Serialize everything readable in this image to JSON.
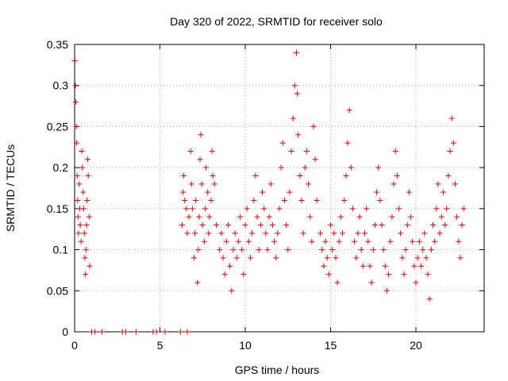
{
  "chart_data": {
    "type": "scatter",
    "title": "Day 320 of 2022, SRMTID for receiver solo",
    "xlabel": "GPS time / hours",
    "ylabel": "SRMTID / TECUs",
    "xlim": [
      0,
      24
    ],
    "ylim": [
      0,
      0.35
    ],
    "x_ticks": [
      0,
      5,
      10,
      15,
      20
    ],
    "x_tick_labels": [
      "0",
      "5",
      "10",
      "15",
      "20"
    ],
    "y_ticks": [
      0,
      0.05,
      0.1,
      0.15,
      0.2,
      0.25,
      0.3,
      0.35
    ],
    "y_tick_labels": [
      "0",
      "0.05",
      "0.1",
      "0.15",
      "0.2",
      "0.25",
      "0.3",
      "0.35"
    ],
    "grid": true,
    "marker": "+",
    "color": "#e00000",
    "series": [
      {
        "name": "SRMTID",
        "points": [
          [
            0.02,
            0.33
          ],
          [
            0.05,
            0.3
          ],
          [
            0.07,
            0.28
          ],
          [
            0.1,
            0.25
          ],
          [
            0.12,
            0.23
          ],
          [
            0.15,
            0.19
          ],
          [
            0.18,
            0.16
          ],
          [
            0.2,
            0.14
          ],
          [
            0.23,
            0.12
          ],
          [
            0.27,
            0.18
          ],
          [
            0.3,
            0.15
          ],
          [
            0.33,
            0.13
          ],
          [
            0.38,
            0.11
          ],
          [
            0.42,
            0.22
          ],
          [
            0.45,
            0.2
          ],
          [
            0.5,
            0.17
          ],
          [
            0.53,
            0.15
          ],
          [
            0.57,
            0.12
          ],
          [
            0.6,
            0.09
          ],
          [
            0.63,
            0.07
          ],
          [
            0.67,
            0.1
          ],
          [
            0.7,
            0.13
          ],
          [
            0.73,
            0.16
          ],
          [
            0.77,
            0.21
          ],
          [
            0.8,
            0.19
          ],
          [
            0.85,
            0.14
          ],
          [
            0.88,
            0.08
          ],
          [
            1.0,
            0.0
          ],
          [
            1.2,
            0.0
          ],
          [
            1.6,
            0.0
          ],
          [
            2.8,
            0.0
          ],
          [
            3.0,
            0.0
          ],
          [
            3.6,
            0.0
          ],
          [
            4.6,
            0.0
          ],
          [
            4.8,
            0.0
          ],
          [
            5.3,
            0.0
          ],
          [
            6.2,
            0.0
          ],
          [
            6.6,
            0.0
          ],
          [
            6.3,
            0.13
          ],
          [
            6.35,
            0.17
          ],
          [
            6.4,
            0.19
          ],
          [
            6.45,
            0.16
          ],
          [
            6.55,
            0.15
          ],
          [
            6.6,
            0.12
          ],
          [
            6.7,
            0.14
          ],
          [
            6.8,
            0.22
          ],
          [
            6.85,
            0.18
          ],
          [
            6.9,
            0.15
          ],
          [
            7.0,
            0.09
          ],
          [
            7.05,
            0.12
          ],
          [
            7.1,
            0.16
          ],
          [
            7.2,
            0.06
          ],
          [
            7.25,
            0.1
          ],
          [
            7.3,
            0.14
          ],
          [
            7.35,
            0.21
          ],
          [
            7.4,
            0.24
          ],
          [
            7.45,
            0.18
          ],
          [
            7.5,
            0.13
          ],
          [
            7.6,
            0.11
          ],
          [
            7.65,
            0.15
          ],
          [
            7.7,
            0.2
          ],
          [
            7.8,
            0.17
          ],
          [
            7.85,
            0.12
          ],
          [
            7.9,
            0.14
          ],
          [
            8.0,
            0.16
          ],
          [
            8.05,
            0.22
          ],
          [
            8.1,
            0.19
          ],
          [
            8.2,
            0.18
          ],
          [
            8.3,
            0.13
          ],
          [
            8.5,
            0.1
          ],
          [
            8.6,
            0.12
          ],
          [
            8.7,
            0.09
          ],
          [
            8.8,
            0.07
          ],
          [
            8.9,
            0.11
          ],
          [
            9.0,
            0.13
          ],
          [
            9.1,
            0.08
          ],
          [
            9.2,
            0.05
          ],
          [
            9.3,
            0.1
          ],
          [
            9.4,
            0.12
          ],
          [
            9.5,
            0.09
          ],
          [
            9.6,
            0.11
          ],
          [
            9.7,
            0.14
          ],
          [
            9.8,
            0.1
          ],
          [
            9.9,
            0.07
          ],
          [
            10.0,
            0.13
          ],
          [
            10.1,
            0.15
          ],
          [
            10.2,
            0.11
          ],
          [
            10.3,
            0.09
          ],
          [
            10.4,
            0.12
          ],
          [
            10.5,
            0.16
          ],
          [
            10.6,
            0.19
          ],
          [
            10.7,
            0.14
          ],
          [
            10.8,
            0.1
          ],
          [
            10.9,
            0.13
          ],
          [
            11.0,
            0.17
          ],
          [
            11.1,
            0.15
          ],
          [
            11.2,
            0.12
          ],
          [
            11.3,
            0.1
          ],
          [
            11.4,
            0.14
          ],
          [
            11.5,
            0.18
          ],
          [
            11.6,
            0.13
          ],
          [
            11.7,
            0.11
          ],
          [
            11.8,
            0.09
          ],
          [
            11.9,
            0.12
          ],
          [
            12.0,
            0.15
          ],
          [
            12.1,
            0.2
          ],
          [
            12.2,
            0.23
          ],
          [
            12.3,
            0.16
          ],
          [
            12.4,
            0.13
          ],
          [
            12.5,
            0.1
          ],
          [
            12.6,
            0.17
          ],
          [
            12.7,
            0.22
          ],
          [
            12.8,
            0.26
          ],
          [
            12.9,
            0.3
          ],
          [
            13.0,
            0.34
          ],
          [
            13.05,
            0.29
          ],
          [
            13.1,
            0.24
          ],
          [
            13.2,
            0.19
          ],
          [
            13.3,
            0.16
          ],
          [
            13.4,
            0.12
          ],
          [
            13.5,
            0.2
          ],
          [
            13.6,
            0.22
          ],
          [
            13.7,
            0.18
          ],
          [
            13.8,
            0.14
          ],
          [
            13.9,
            0.11
          ],
          [
            14.0,
            0.25
          ],
          [
            14.1,
            0.21
          ],
          [
            14.2,
            0.16
          ],
          [
            14.4,
            0.12
          ],
          [
            14.5,
            0.1
          ],
          [
            14.6,
            0.08
          ],
          [
            14.7,
            0.11
          ],
          [
            14.8,
            0.09
          ],
          [
            14.9,
            0.07
          ],
          [
            15.0,
            0.13
          ],
          [
            15.1,
            0.1
          ],
          [
            15.2,
            0.12
          ],
          [
            15.3,
            0.09
          ],
          [
            15.4,
            0.06
          ],
          [
            15.5,
            0.11
          ],
          [
            15.6,
            0.14
          ],
          [
            15.7,
            0.12
          ],
          [
            15.8,
            0.16
          ],
          [
            15.9,
            0.19
          ],
          [
            16.0,
            0.23
          ],
          [
            16.1,
            0.27
          ],
          [
            16.2,
            0.2
          ],
          [
            16.3,
            0.15
          ],
          [
            16.4,
            0.11
          ],
          [
            16.5,
            0.09
          ],
          [
            16.6,
            0.12
          ],
          [
            16.7,
            0.14
          ],
          [
            16.8,
            0.1
          ],
          [
            16.9,
            0.08
          ],
          [
            17.0,
            0.12
          ],
          [
            17.1,
            0.15
          ],
          [
            17.2,
            0.11
          ],
          [
            17.3,
            0.08
          ],
          [
            17.4,
            0.06
          ],
          [
            17.5,
            0.1
          ],
          [
            17.6,
            0.13
          ],
          [
            17.7,
            0.17
          ],
          [
            17.8,
            0.2
          ],
          [
            17.9,
            0.16
          ],
          [
            18.0,
            0.13
          ],
          [
            18.1,
            0.1
          ],
          [
            18.2,
            0.08
          ],
          [
            18.3,
            0.05
          ],
          [
            18.4,
            0.07
          ],
          [
            18.5,
            0.11
          ],
          [
            18.6,
            0.14
          ],
          [
            18.7,
            0.18
          ],
          [
            18.8,
            0.22
          ],
          [
            18.9,
            0.19
          ],
          [
            19.0,
            0.15
          ],
          [
            19.1,
            0.12
          ],
          [
            19.2,
            0.09
          ],
          [
            19.3,
            0.07
          ],
          [
            19.4,
            0.1
          ],
          [
            19.5,
            0.13
          ],
          [
            19.6,
            0.17
          ],
          [
            19.7,
            0.14
          ],
          [
            19.8,
            0.11
          ],
          [
            19.9,
            0.08
          ],
          [
            20.0,
            0.06
          ],
          [
            20.1,
            0.09
          ],
          [
            20.2,
            0.11
          ],
          [
            20.3,
            0.08
          ],
          [
            20.4,
            0.1
          ],
          [
            20.5,
            0.12
          ],
          [
            20.6,
            0.09
          ],
          [
            20.7,
            0.07
          ],
          [
            20.8,
            0.04
          ],
          [
            20.9,
            0.1
          ],
          [
            21.0,
            0.13
          ],
          [
            21.1,
            0.11
          ],
          [
            21.2,
            0.15
          ],
          [
            21.3,
            0.18
          ],
          [
            21.4,
            0.12
          ],
          [
            21.5,
            0.14
          ],
          [
            21.6,
            0.17
          ],
          [
            21.7,
            0.13
          ],
          [
            21.8,
            0.15
          ],
          [
            21.9,
            0.19
          ],
          [
            22.0,
            0.22
          ],
          [
            22.1,
            0.26
          ],
          [
            22.2,
            0.23
          ],
          [
            22.3,
            0.18
          ],
          [
            22.4,
            0.14
          ],
          [
            22.5,
            0.11
          ],
          [
            22.6,
            0.09
          ],
          [
            22.7,
            0.13
          ],
          [
            22.8,
            0.15
          ]
        ]
      }
    ]
  }
}
